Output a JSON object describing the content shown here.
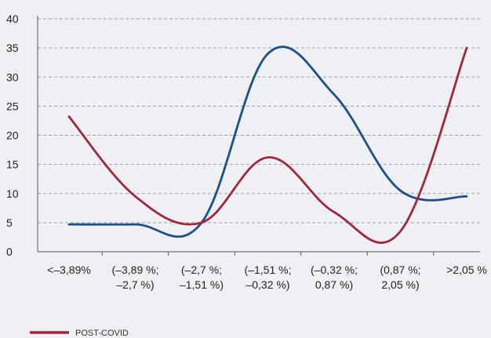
{
  "chart_data": {
    "type": "line",
    "categories": [
      [
        "<–3,89%"
      ],
      [
        "(–3,89 %;",
        "–2,7 %)"
      ],
      [
        "(–2,7 %;",
        "–1,51 %)"
      ],
      [
        "(–1,51 %;",
        "–0,32 %)"
      ],
      [
        "(–0,32 %;",
        "0,87 %)"
      ],
      [
        "(0,87 %;",
        "2,05 %)"
      ],
      [
        ">2,05 %"
      ]
    ],
    "ylim": [
      0,
      40
    ],
    "yticks": [
      0,
      5,
      10,
      15,
      20,
      25,
      30,
      35,
      40
    ],
    "grid": true,
    "legend_position": "bottom-left",
    "series": [
      {
        "name": "POST-COVID",
        "color": "#a3243b",
        "values": [
          23.2,
          9.5,
          5.0,
          16.2,
          6.8,
          3.5,
          35.0
        ]
      },
      {
        "name": "",
        "color": "#1d4f8c",
        "values": [
          4.7,
          4.7,
          5.0,
          34.0,
          27.0,
          10.5,
          9.5
        ]
      }
    ]
  }
}
